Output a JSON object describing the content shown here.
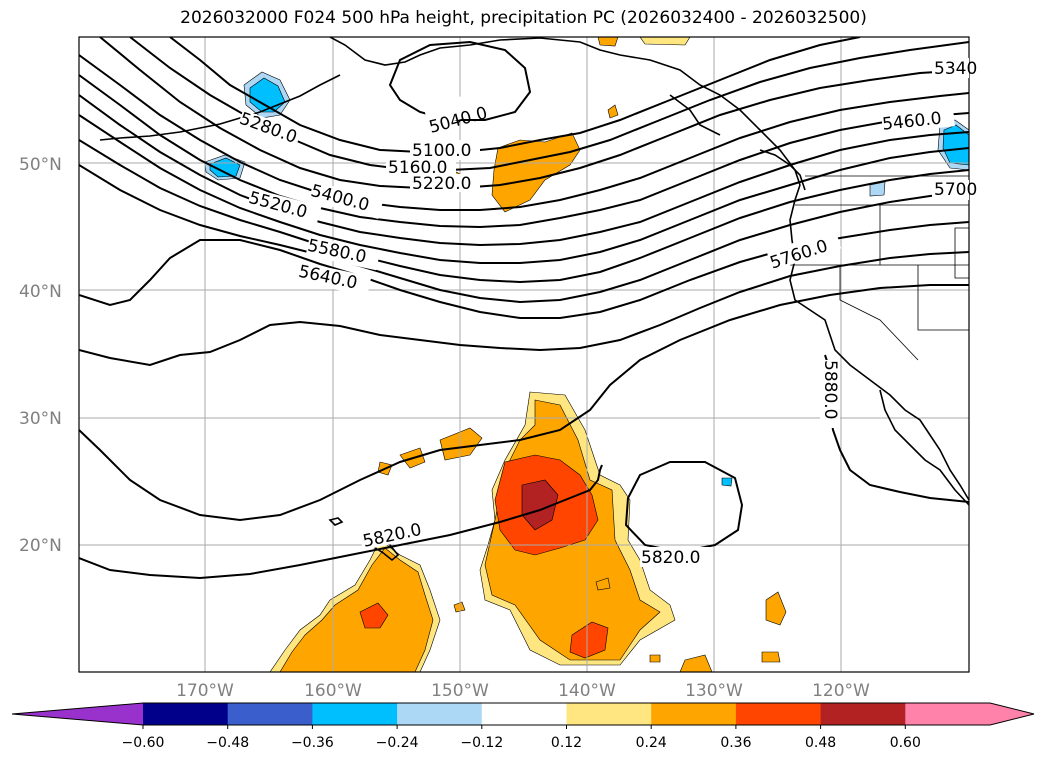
{
  "title": "2026032000 F024 500 hPa height, precipitation PC (2026032400 - 2026032500)",
  "latitude_labels": [
    "50°N",
    "40°N",
    "30°N",
    "20°N"
  ],
  "longitude_labels": [
    "170°W",
    "160°W",
    "150°W",
    "140°W",
    "130°W",
    "120°W"
  ],
  "contour_labels": [
    "5040.0",
    "5100.0",
    "5160.0",
    "5220.0",
    "5280.0",
    "5400.0",
    "5520.0",
    "5580.0",
    "5640.0",
    "5760.0",
    "5460.0",
    "5340",
    "5700",
    "5820.0",
    "5820.0",
    "5880.0"
  ],
  "colorbar": {
    "ticks": [
      "−0.60",
      "−0.48",
      "−0.36",
      "−0.24",
      "−0.12",
      "0.12",
      "0.24",
      "0.36",
      "0.48",
      "0.60"
    ],
    "colors": [
      "#9932cc",
      "#00008b",
      "#3a5fcd",
      "#00bfff",
      "#add8f5",
      "#ffffff",
      "#ffe680",
      "#ffa500",
      "#ff4500",
      "#b22222",
      "#ff82ab",
      "#ff82ab"
    ]
  },
  "colors": {
    "precip_light": "#ffe680",
    "precip_medium": "#ffa500",
    "precip_heavy": "#ff4500",
    "precip_very_heavy": "#b22222",
    "neg_light": "#add8f5",
    "neg_medium": "#00bfff"
  }
}
